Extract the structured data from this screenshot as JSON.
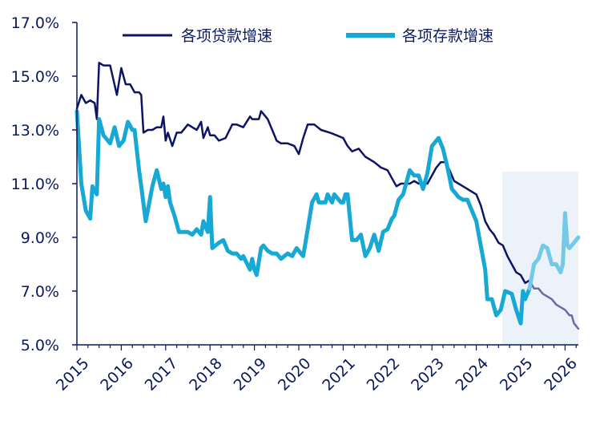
{
  "chart_data": {
    "type": "line",
    "title": "",
    "xlabel": "",
    "ylabel": "",
    "xlim": [
      2015.0,
      2026.3
    ],
    "ylim": [
      5.0,
      17.0
    ],
    "yticks": [
      5,
      7,
      9,
      11,
      13,
      15,
      17
    ],
    "ytick_labels": [
      "5.0%",
      "7.0%",
      "9.0%",
      "11.0%",
      "13.0%",
      "15.0%",
      "17.0%"
    ],
    "xticks": [
      2015,
      2016,
      2017,
      2018,
      2019,
      2020,
      2021,
      2022,
      2023,
      2024,
      2025,
      2026
    ],
    "xtick_labels": [
      "2015",
      "2016",
      "2017",
      "2018",
      "2019",
      "2020",
      "2021",
      "2022",
      "2023",
      "2024",
      "2025",
      "2026"
    ],
    "legend_position": "top",
    "forecast_region": [
      2025.2,
      2026.3
    ],
    "colors": {
      "loans": "#0d1466",
      "loans_forecast": "#6e6aa6",
      "deposits": "#17a9d4",
      "deposits_forecast": "#74c9e6",
      "forecast_band": "#ecf2f9",
      "axis": "#0b1a5c"
    },
    "series": [
      {
        "name": "各项贷款增速",
        "key": "loans",
        "x": [
          2015.0,
          2015.1,
          2015.2,
          2015.3,
          2015.4,
          2015.45,
          2015.5,
          2015.6,
          2015.75,
          2015.9,
          2016.0,
          2016.1,
          2016.2,
          2016.3,
          2016.4,
          2016.45,
          2016.5,
          2016.6,
          2016.7,
          2016.8,
          2016.9,
          2016.95,
          2017.0,
          2017.05,
          2017.15,
          2017.25,
          2017.35,
          2017.5,
          2017.7,
          2017.8,
          2017.85,
          2017.95,
          2018.0,
          2018.1,
          2018.2,
          2018.35,
          2018.5,
          2018.6,
          2018.75,
          2018.9,
          2018.95,
          2019.1,
          2019.15,
          2019.3,
          2019.4,
          2019.5,
          2019.6,
          2019.75,
          2019.9,
          2020.0,
          2020.1,
          2020.2,
          2020.35,
          2020.5,
          2020.7,
          2020.85,
          2021.0,
          2021.1,
          2021.2,
          2021.35,
          2021.5,
          2021.7,
          2021.85,
          2022.0,
          2022.1,
          2022.2,
          2022.3,
          2022.4,
          2022.5,
          2022.6,
          2022.7,
          2022.8,
          2022.9,
          2023.0,
          2023.1,
          2023.2,
          2023.3,
          2023.4,
          2023.5,
          2023.6,
          2023.7,
          2023.8,
          2023.9,
          2024.0,
          2024.1,
          2024.2,
          2024.3,
          2024.4,
          2024.5,
          2024.6,
          2024.7,
          2024.8,
          2024.9,
          2025.0,
          2025.1,
          2025.2
        ],
        "values": [
          13.8,
          14.3,
          14.0,
          14.1,
          14.0,
          13.4,
          15.5,
          15.4,
          15.4,
          14.3,
          15.3,
          14.7,
          14.7,
          14.4,
          14.4,
          14.3,
          12.9,
          13.0,
          13.0,
          13.1,
          13.1,
          13.5,
          12.6,
          12.9,
          12.4,
          12.9,
          12.9,
          13.2,
          13.0,
          13.3,
          12.7,
          13.1,
          12.8,
          12.8,
          12.6,
          12.7,
          13.2,
          13.2,
          13.1,
          13.5,
          13.4,
          13.4,
          13.7,
          13.4,
          13.0,
          12.6,
          12.5,
          12.5,
          12.4,
          12.1,
          12.7,
          13.2,
          13.2,
          13.0,
          12.9,
          12.8,
          12.7,
          12.4,
          12.2,
          12.3,
          12.0,
          11.8,
          11.6,
          11.5,
          11.2,
          10.9,
          11.0,
          11.0,
          11.0,
          11.1,
          11.0,
          11.0,
          11.0,
          11.3,
          11.6,
          11.8,
          11.8,
          11.5,
          11.1,
          11.0,
          10.9,
          10.8,
          10.7,
          10.6,
          10.2,
          9.6,
          9.3,
          9.1,
          8.8,
          8.7,
          8.3,
          8.0,
          7.7,
          7.6,
          7.3,
          7.4
        ]
      },
      {
        "name": "各项存款增速",
        "key": "deposits",
        "x": [
          2015.0,
          2015.1,
          2015.2,
          2015.3,
          2015.35,
          2015.45,
          2015.5,
          2015.6,
          2015.75,
          2015.85,
          2015.95,
          2016.0,
          2016.05,
          2016.15,
          2016.25,
          2016.3,
          2016.4,
          2016.45,
          2016.55,
          2016.7,
          2016.8,
          2016.9,
          2016.95,
          2017.0,
          2017.05,
          2017.1,
          2017.2,
          2017.3,
          2017.4,
          2017.5,
          2017.6,
          2017.7,
          2017.8,
          2017.85,
          2017.95,
          2018.0,
          2018.05,
          2018.2,
          2018.3,
          2018.4,
          2018.5,
          2018.6,
          2018.7,
          2018.75,
          2018.9,
          2018.95,
          2019.0,
          2019.05,
          2019.15,
          2019.2,
          2019.3,
          2019.4,
          2019.5,
          2019.6,
          2019.75,
          2019.85,
          2019.95,
          2020.0,
          2020.1,
          2020.2,
          2020.3,
          2020.4,
          2020.45,
          2020.55,
          2020.6,
          2020.65,
          2020.75,
          2020.8,
          2020.95,
          2021.0,
          2021.05,
          2021.1,
          2021.2,
          2021.3,
          2021.4,
          2021.5,
          2021.6,
          2021.7,
          2021.8,
          2021.9,
          2022.0,
          2022.1,
          2022.15,
          2022.25,
          2022.35,
          2022.5,
          2022.6,
          2022.7,
          2022.8,
          2022.9,
          2023.0,
          2023.05,
          2023.15,
          2023.25,
          2023.35,
          2023.45,
          2023.55,
          2023.6,
          2023.7,
          2023.8,
          2023.9,
          2024.0,
          2024.1,
          2024.2,
          2024.25,
          2024.35,
          2024.45,
          2024.55,
          2024.65,
          2024.8,
          2024.9,
          2025.0,
          2025.05,
          2025.1,
          2025.2
        ],
        "values": [
          13.7,
          11.0,
          10.0,
          9.7,
          10.9,
          10.6,
          13.4,
          12.8,
          12.5,
          13.1,
          12.4,
          12.5,
          12.6,
          13.3,
          13.0,
          13.0,
          11.5,
          10.9,
          9.6,
          10.9,
          11.5,
          10.8,
          11.0,
          10.5,
          10.9,
          10.3,
          9.8,
          9.2,
          9.2,
          9.2,
          9.1,
          9.3,
          9.1,
          9.6,
          9.2,
          10.5,
          8.6,
          8.8,
          8.9,
          8.5,
          8.4,
          8.4,
          8.2,
          8.3,
          7.8,
          8.2,
          7.8,
          7.6,
          8.6,
          8.7,
          8.5,
          8.4,
          8.4,
          8.2,
          8.4,
          8.3,
          8.6,
          8.5,
          8.3,
          9.3,
          10.3,
          10.6,
          10.3,
          10.3,
          10.3,
          10.6,
          10.3,
          10.6,
          10.3,
          10.3,
          10.6,
          10.6,
          8.9,
          8.9,
          9.1,
          8.3,
          8.6,
          9.1,
          8.5,
          9.2,
          9.3,
          9.7,
          9.8,
          10.4,
          10.6,
          11.5,
          11.3,
          11.3,
          10.8,
          11.4,
          12.4,
          12.5,
          12.7,
          12.3,
          11.6,
          10.8,
          10.6,
          10.5,
          10.4,
          10.4,
          10.0,
          9.6,
          8.7,
          7.8,
          6.7,
          6.7,
          6.1,
          6.3,
          7.0,
          6.9,
          6.3,
          5.8,
          7.0,
          6.7,
          7.1
        ]
      },
      {
        "name": "",
        "key": "loans_forecast",
        "x": [
          2025.2,
          2025.3,
          2025.4,
          2025.5,
          2025.6,
          2025.7,
          2025.8,
          2025.9,
          2026.0,
          2026.1,
          2026.15,
          2026.2,
          2026.3
        ],
        "values": [
          7.4,
          7.1,
          7.1,
          6.9,
          6.8,
          6.7,
          6.5,
          6.4,
          6.3,
          6.1,
          6.1,
          5.8,
          5.6
        ]
      },
      {
        "name": "",
        "key": "deposits_forecast",
        "x": [
          2025.2,
          2025.3,
          2025.4,
          2025.5,
          2025.6,
          2025.7,
          2025.8,
          2025.9,
          2025.95,
          2026.0,
          2026.05,
          2026.1,
          2026.2,
          2026.3
        ],
        "values": [
          7.1,
          8.0,
          8.2,
          8.7,
          8.6,
          8.0,
          8.0,
          7.7,
          8.0,
          9.9,
          8.7,
          8.6,
          8.8,
          9.0
        ]
      }
    ]
  }
}
